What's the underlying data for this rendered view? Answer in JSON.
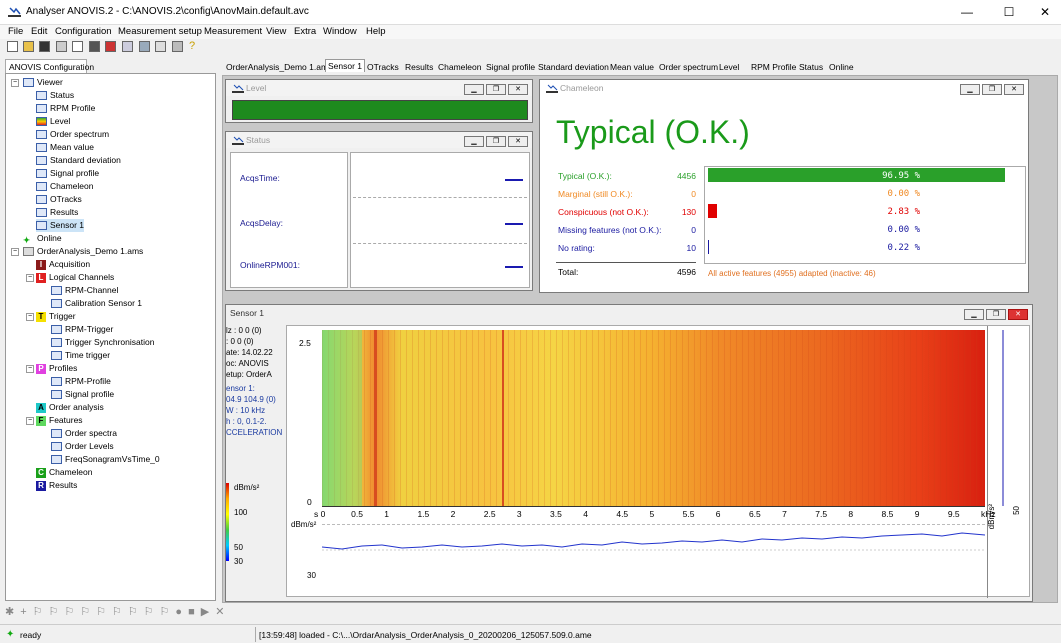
{
  "window": {
    "title": "Analyser ANOVIS.2 - C:\\ANOVIS.2\\config\\AnovMain.default.avc",
    "minimize": "—",
    "maximize": "☐",
    "close": "✕"
  },
  "menu": [
    "File",
    "Edit",
    "Configuration",
    "Measurement setup",
    "Measurement",
    "View",
    "Extra",
    "Window",
    "Help"
  ],
  "left_tab": "ANOVIS Configuration",
  "tree": [
    {
      "label": "Viewer",
      "icon": "viewer-icon"
    },
    {
      "label": "Status",
      "icon": "viewer-item-icon"
    },
    {
      "label": "RPM Profile",
      "icon": "viewer-item-icon"
    },
    {
      "label": "Level",
      "icon": "viewer-item-icon"
    },
    {
      "label": "Order spectrum",
      "icon": "viewer-item-icon"
    },
    {
      "label": "Mean value",
      "icon": "viewer-item-icon"
    },
    {
      "label": "Standard deviation",
      "icon": "viewer-item-icon"
    },
    {
      "label": "Signal profile",
      "icon": "viewer-item-icon"
    },
    {
      "label": "Chameleon",
      "icon": "viewer-item-icon"
    },
    {
      "label": "OTracks",
      "icon": "viewer-item-icon"
    },
    {
      "label": "Results",
      "icon": "viewer-item-icon"
    },
    {
      "label": "Sensor 1",
      "icon": "viewer-item-icon"
    },
    {
      "label": "Online",
      "icon": "online-icon"
    },
    {
      "label": "OrderAnalysis_Demo 1.ams",
      "icon": "project-icon"
    },
    {
      "label": "Acquisition",
      "icon": "letter-i-icon",
      "letter": "I"
    },
    {
      "label": "Logical Channels",
      "icon": "letter-l-icon",
      "letter": "L"
    },
    {
      "label": "RPM-Channel",
      "icon": "channel-icon"
    },
    {
      "label": "Calibration Sensor 1",
      "icon": "channel-icon"
    },
    {
      "label": "Trigger",
      "icon": "letter-t-icon",
      "letter": "T"
    },
    {
      "label": "RPM-Trigger",
      "icon": "trigger-icon"
    },
    {
      "label": "Trigger Synchronisation",
      "icon": "trigger-icon"
    },
    {
      "label": "Time trigger",
      "icon": "trigger-icon"
    },
    {
      "label": "Profiles",
      "icon": "letter-p-icon",
      "letter": "P"
    },
    {
      "label": "RPM-Profile",
      "icon": "profile-icon"
    },
    {
      "label": "Signal profile",
      "icon": "profile-icon"
    },
    {
      "label": "Order analysis",
      "icon": "letter-a-icon",
      "letter": "A"
    },
    {
      "label": "Features",
      "icon": "letter-f-icon",
      "letter": "F"
    },
    {
      "label": "Order spectra",
      "icon": "feature-icon"
    },
    {
      "label": "Order Levels",
      "icon": "feature-icon"
    },
    {
      "label": "FreqSonagramVsTime_0",
      "icon": "feature-icon"
    },
    {
      "label": "Chameleon",
      "icon": "letter-c-icon",
      "letter": "C"
    },
    {
      "label": "Results",
      "icon": "letter-r-icon",
      "letter": "R"
    }
  ],
  "tabs": [
    "OrderAnalysis_Demo 1.ams",
    "Sensor 1",
    "OTracks",
    "Results",
    "Chameleon",
    "Signal profile",
    "Standard deviation",
    "Mean value",
    "Order spectrum",
    "Level",
    "RPM Profile",
    "Status",
    "Online"
  ],
  "level_window": {
    "title": "Level"
  },
  "status_window": {
    "title": "Status",
    "labels": [
      "AcqsTime:",
      "AcqsDelay:",
      "OnlineRPM001:"
    ]
  },
  "chameleon": {
    "title": "Chameleon",
    "headline": "Typical (O.K.)",
    "rows": [
      {
        "label": "Typical (O.K.):",
        "count": "4456",
        "pct": "96.95 %",
        "fraction": 0.9695,
        "color": "#2aa02a"
      },
      {
        "label": "Marginal (still O.K.):",
        "count": "0",
        "pct": "0.00 %",
        "fraction": 0,
        "color": "#f08a24"
      },
      {
        "label": "Conspicuous (not O.K.):",
        "count": "130",
        "pct": "2.83 %",
        "fraction": 0.0283,
        "color": "#e00000"
      },
      {
        "label": "Missing features (not O.K.):",
        "count": "0",
        "pct": "0.00 %",
        "fraction": 0,
        "color": "#1a1aa0"
      },
      {
        "label": "No rating:",
        "count": "10",
        "pct": "0.22 %",
        "fraction": 0.0022,
        "color": "#1a1aa0"
      }
    ],
    "total_label": "Total:",
    "total": "4596",
    "footer": "All active features (4955) adapted (inactive: 46)"
  },
  "sensor": {
    "title": "Sensor 1",
    "info": [
      "lz : 0 0  (0)",
      ": 0  0   (0)",
      "ate:    14.02.22",
      "oc:    ANOVIS",
      "etup:   OrderA"
    ],
    "info2": [
      "ensor 1:",
      "04.9  104.9  (0)",
      "W :    10 kHz",
      "h :     0, 0.1-2.",
      "CCELERATION ("
    ],
    "y_ticks": [
      "2.5",
      "0"
    ],
    "x_ticks": [
      "s 0",
      "0.5",
      "1",
      "1.5",
      "2",
      "2.5",
      "3",
      "3.5",
      "4",
      "4.5",
      "5",
      "5.5",
      "6",
      "6.5",
      "7",
      "7.5",
      "8",
      "8.5",
      "9",
      "9.5",
      "kHz"
    ],
    "colorbar_unit": "dBm/s²",
    "colorbar_ticks": [
      "100",
      "50",
      "30"
    ],
    "bottom_unit": "dBm/s²",
    "bottom_tick": "30",
    "right_unit": "dBm/s²",
    "right_tick": "50"
  },
  "statusbar": {
    "ready": "ready",
    "message": "[13:59:48] loaded - C:\\...\\OrdarAnalysis_OrderAnalysis_0_20200206_125057.509.0.ame"
  }
}
